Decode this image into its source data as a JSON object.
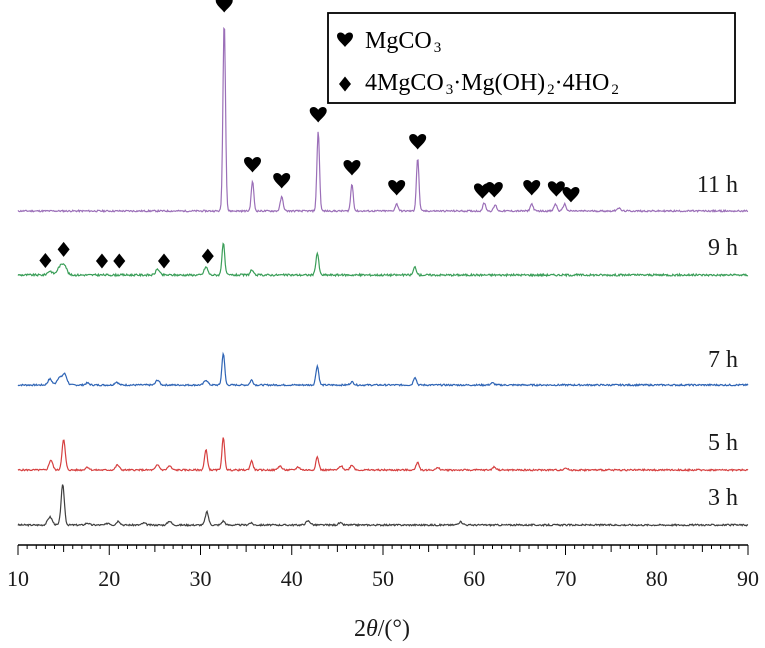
{
  "chart_data": {
    "type": "line",
    "title": "",
    "xlabel_prefix": "2",
    "xlabel_symbol": "θ",
    "xlabel_suffix": "/(°)",
    "ylabel": "",
    "xlim": [
      10,
      90
    ],
    "x_ticks": [
      "10",
      "20",
      "30",
      "40",
      "50",
      "60",
      "70",
      "80",
      "90"
    ],
    "grid": false,
    "legend_placement": "top-right",
    "legend": [
      {
        "marker": "heart",
        "parts": [
          [
            "MgCO",
            "n"
          ],
          [
            "3",
            "s"
          ]
        ]
      },
      {
        "marker": "diamond",
        "parts": [
          [
            "4MgCO",
            "n"
          ],
          [
            "3",
            "s"
          ],
          [
            "·Mg(OH)",
            "n"
          ],
          [
            "2",
            "s"
          ],
          [
            "·4HO",
            "n"
          ],
          [
            "2",
            "s"
          ]
        ]
      }
    ],
    "series": [
      {
        "name": "3 h",
        "color": "#3f3f3f",
        "baseline": 5,
        "noise": 0.8,
        "seed": 3,
        "peaks": [
          [
            13.5,
            8,
            0.25
          ],
          [
            14.9,
            40,
            0.18
          ],
          [
            17.6,
            2,
            0.2
          ],
          [
            19.9,
            2,
            0.2
          ],
          [
            21,
            4,
            0.2
          ],
          [
            23.8,
            2,
            0.2
          ],
          [
            26.6,
            4,
            0.2
          ],
          [
            30.7,
            13,
            0.18
          ],
          [
            32.5,
            4,
            0.18
          ],
          [
            35.5,
            2,
            0.2
          ],
          [
            41.8,
            4,
            0.25
          ],
          [
            45.3,
            2,
            0.2
          ],
          [
            58.5,
            3,
            0.25
          ]
        ]
      },
      {
        "name": "5 h",
        "color": "#d64040",
        "baseline": 5,
        "noise": 0.8,
        "seed": 5,
        "peaks": [
          [
            13.6,
            10,
            0.2
          ],
          [
            15,
            30,
            0.18
          ],
          [
            17.6,
            3,
            0.2
          ],
          [
            20.9,
            5,
            0.2
          ],
          [
            25.3,
            5,
            0.2
          ],
          [
            26.6,
            4,
            0.2
          ],
          [
            30.6,
            20,
            0.16
          ],
          [
            32.5,
            32,
            0.15
          ],
          [
            35.6,
            9,
            0.16
          ],
          [
            38.7,
            4,
            0.2
          ],
          [
            40.7,
            3,
            0.2
          ],
          [
            42.8,
            13,
            0.16
          ],
          [
            45.4,
            4,
            0.2
          ],
          [
            46.6,
            5,
            0.2
          ],
          [
            53.8,
            8,
            0.16
          ],
          [
            56,
            2,
            0.2
          ],
          [
            62.2,
            3,
            0.2
          ],
          [
            70,
            2,
            0.2
          ]
        ]
      },
      {
        "name": "7 h",
        "color": "#2e64b5",
        "baseline": 5,
        "noise": 0.8,
        "seed": 7,
        "peaks": [
          [
            13.5,
            6,
            0.22
          ],
          [
            14.5,
            7,
            0.25
          ],
          [
            15.1,
            11,
            0.25
          ],
          [
            17.6,
            2,
            0.2
          ],
          [
            20.8,
            3,
            0.2
          ],
          [
            25.3,
            5,
            0.2
          ],
          [
            30.6,
            5,
            0.2
          ],
          [
            32.5,
            32,
            0.15
          ],
          [
            35.6,
            5,
            0.16
          ],
          [
            42.8,
            19,
            0.16
          ],
          [
            46.6,
            3,
            0.2
          ],
          [
            53.5,
            8,
            0.16
          ],
          [
            62,
            2,
            0.2
          ]
        ]
      },
      {
        "name": "9 h",
        "color": "#3a9e58",
        "baseline": 5,
        "noise": 1.0,
        "seed": 9,
        "peaks": [
          [
            13.5,
            4,
            0.25
          ],
          [
            14.6,
            8,
            0.3
          ],
          [
            15.1,
            9,
            0.25
          ],
          [
            25.3,
            6,
            0.2
          ],
          [
            30.6,
            8,
            0.2
          ],
          [
            32.5,
            32,
            0.15
          ],
          [
            35.6,
            5,
            0.16
          ],
          [
            42.8,
            22,
            0.16
          ],
          [
            53.5,
            8,
            0.16
          ]
        ]
      },
      {
        "name": "11 h",
        "color": "#9b6fb8",
        "baseline": 5,
        "noise": 0.8,
        "seed": 11,
        "peaks": [
          [
            32.6,
            190,
            0.14
          ],
          [
            35.7,
            30,
            0.14
          ],
          [
            38.9,
            14,
            0.16
          ],
          [
            42.9,
            80,
            0.14
          ],
          [
            46.6,
            27,
            0.14
          ],
          [
            51.5,
            7,
            0.16
          ],
          [
            53.8,
            53,
            0.14
          ],
          [
            61.1,
            8,
            0.16
          ],
          [
            62.3,
            6,
            0.16
          ],
          [
            66.3,
            7,
            0.16
          ],
          [
            68.9,
            7,
            0.16
          ],
          [
            69.9,
            7,
            0.16
          ],
          [
            75.8,
            3,
            0.2
          ]
        ]
      }
    ],
    "annotations": [
      {
        "marker": "heart",
        "series": 4,
        "x": 32.6
      },
      {
        "marker": "heart",
        "series": 4,
        "x": 35.7
      },
      {
        "marker": "heart",
        "series": 4,
        "x": 38.9
      },
      {
        "marker": "heart",
        "series": 4,
        "x": 42.9
      },
      {
        "marker": "heart",
        "series": 4,
        "x": 46.6
      },
      {
        "marker": "heart",
        "series": 4,
        "x": 51.5
      },
      {
        "marker": "heart",
        "series": 4,
        "x": 53.8
      },
      {
        "marker": "heart",
        "series": 4,
        "x": 60.9
      },
      {
        "marker": "heart",
        "series": 4,
        "x": 62.2
      },
      {
        "marker": "heart",
        "series": 4,
        "x": 66.3
      },
      {
        "marker": "heart",
        "series": 4,
        "x": 69
      },
      {
        "marker": "heart",
        "series": 4,
        "x": 70.6
      },
      {
        "marker": "diamond",
        "series": 3,
        "x": 13
      },
      {
        "marker": "diamond",
        "series": 3,
        "x": 15
      },
      {
        "marker": "diamond",
        "series": 3,
        "x": 19.2
      },
      {
        "marker": "diamond",
        "series": 3,
        "x": 21.1
      },
      {
        "marker": "diamond",
        "series": 3,
        "x": 26
      },
      {
        "marker": "diamond",
        "series": 3,
        "x": 30.8
      }
    ]
  }
}
